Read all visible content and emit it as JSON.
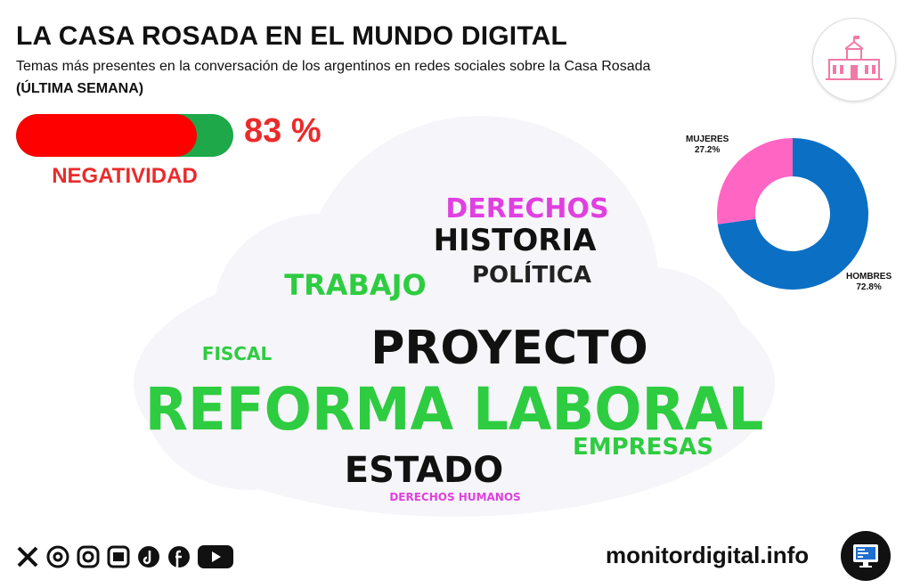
{
  "header": {
    "title": "LA CASA ROSADA EN EL MUNDO DIGITAL",
    "subtitle": "Temas más presentes en la conversación de los argentinos en redes sociales sobre la Casa Rosada",
    "period": "(ÚLTIMA SEMANA)",
    "logo_icon": "casa-rosada-building-icon"
  },
  "negativity": {
    "value_text": "83 %",
    "fraction": 0.83,
    "label": "NEGATIVIDAD",
    "fill_color": "#ff0000",
    "track_color": "#1ea84a"
  },
  "chart_data": [
    {
      "type": "wordcloud",
      "words": [
        {
          "text": "REFORMA LABORAL",
          "color": "#2ecc40"
        },
        {
          "text": "PROYECTO",
          "color": "#111111"
        },
        {
          "text": "ESTADO",
          "color": "#111111"
        },
        {
          "text": "HISTORIA",
          "color": "#111111"
        },
        {
          "text": "POLÍTICA",
          "color": "#222222"
        },
        {
          "text": "TRABAJO",
          "color": "#2ecc40"
        },
        {
          "text": "DERECHOS",
          "color": "#e040e0"
        },
        {
          "text": "EMPRESAS",
          "color": "#2ecc40"
        },
        {
          "text": "FISCAL",
          "color": "#2ecc40"
        },
        {
          "text": "DERECHOS HUMANOS",
          "color": "#e040e0"
        }
      ]
    },
    {
      "type": "pie",
      "labels": [
        "HOMBRES",
        "MUJERES"
      ],
      "values": [
        72.8,
        27.2
      ],
      "value_labels": [
        "72.8%",
        "27.2%"
      ],
      "colors": [
        "#0b6fc4",
        "#ff66c4"
      ],
      "donut": true
    }
  ],
  "footer": {
    "social_icons": [
      "x-icon",
      "threads-icon",
      "instagram-icon",
      "news-icon",
      "tiktok-icon",
      "facebook-icon",
      "youtube-icon"
    ],
    "website": "monitordigital.info",
    "website_icon": "monitor-dashboard-icon"
  }
}
